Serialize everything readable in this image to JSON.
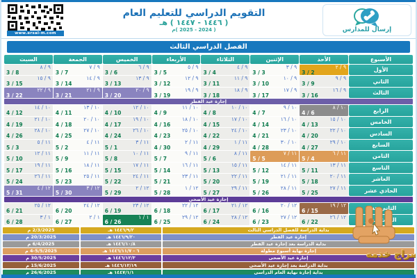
{
  "colors": {
    "blue": "#1878be",
    "teal": "#27a49d",
    "hijri_text": "#4a73c8",
    "greg_text": "#0e7b4e",
    "start": "#e2a51c",
    "lavender": "#8a84bf",
    "gray": "#8c8c8c",
    "orange": "#dd9c58",
    "brown": "#9a6a47",
    "green": "#168255",
    "band_fitr": "#6c5ea8",
    "band_adha": "#5d3d98"
  },
  "header": {
    "title": "التقويم الدراسي للتعليم العام",
    "hijri_years": "( ١٤٤٦ - ١٤٤٧ ) هـ",
    "gregorian_years": "( 2024 - 2025 )م",
    "logo_text": "إرسال للمدارس",
    "qr_label": "www.ersal-m.com"
  },
  "semester_banner": "الفصل الدراسي الثالث",
  "calendar": {
    "week_header": "الأسبوع",
    "day_headers": [
      "الأحد",
      "الإثنين",
      "الثلاثاء",
      "الأربعاء",
      "الخميس",
      "الجمعة",
      "السبت"
    ],
    "bands": {
      "fitr": "إجازة عيد الفطر",
      "adha": "إجازة عيد الأضحى"
    },
    "rows": [
      {
        "label": "الأول",
        "cells": [
          [
            "٩ / ٢",
            "3 / 2",
            "start"
          ],
          [
            "٩ / ٣",
            "3 / 3"
          ],
          [
            "٩ / ٤",
            "3 / 4"
          ],
          [
            "٩ / ٥",
            "3 / 5"
          ],
          [
            "٩ / ٦",
            "3 / 6"
          ],
          [
            "٩ / ٧",
            "3 / 7"
          ],
          [
            "٩ / ٨",
            "3 / 8"
          ]
        ]
      },
      {
        "label": "الثاني",
        "cells": [
          [
            "٩ / ٩",
            "3 / 9"
          ],
          [
            "٩ / ١٠",
            "3 / 10"
          ],
          [
            "٩ / ١١",
            "3 / 11"
          ],
          [
            "٩ / ١٢",
            "3 / 12"
          ],
          [
            "٩ / ١٣",
            "3 / 13"
          ],
          [
            "٩ / ١٤",
            "3 / 14"
          ],
          [
            "٩ / ١٥",
            "3 / 15"
          ]
        ]
      },
      {
        "label": "الثالث",
        "cells": [
          [
            "٩ / ١٦",
            "3 / 16"
          ],
          [
            "٩ / ١٧",
            "3 / 17"
          ],
          [
            "٩ / ١٨",
            "3 / 18"
          ],
          [
            "٩ / ١٩",
            "3 / 19"
          ],
          [
            "٩ / ٢٠",
            "3 / 20",
            "fitr"
          ],
          [
            "٩ / ٢١",
            "3 / 21",
            "fitr"
          ],
          [
            "٩ / ٢٢",
            "3 / 22",
            "fitr"
          ]
        ]
      },
      {
        "band": "fitr"
      },
      {
        "label": "الرابع",
        "cells": [
          [
            "١٠ / ٨",
            "4 / 6",
            "resume"
          ],
          [
            "١٠ / ٩",
            "4 / 7"
          ],
          [
            "١٠ / ١٠",
            "4 / 8"
          ],
          [
            "١٠ / ١١",
            "4 / 9"
          ],
          [
            "١٠ / ١٢",
            "4 / 10"
          ],
          [
            "١٠ / ١٣",
            "4 / 11"
          ],
          [
            "١٠ / ١٤",
            "4 / 12"
          ]
        ]
      },
      {
        "label": "الخامس",
        "cells": [
          [
            "١٠ / ١٥",
            "4 / 13"
          ],
          [
            "١٠ / ١٦",
            "4 / 14"
          ],
          [
            "١٠ / ١٧",
            "4 / 15"
          ],
          [
            "١٠ / ١٨",
            "4 / 16"
          ],
          [
            "١٠ / ١٩",
            "4 / 17"
          ],
          [
            "١٠ / ٢٠",
            "4 / 18"
          ],
          [
            "١٠ / ٢١",
            "4 / 19"
          ]
        ]
      },
      {
        "label": "السادس",
        "cells": [
          [
            "١٠ / ٢٢",
            "4 / 20"
          ],
          [
            "١٠ / ٢٣",
            "4 / 21"
          ],
          [
            "١٠ / ٢٤",
            "4 / 22"
          ],
          [
            "١٠ / ٢٥",
            "4 / 23"
          ],
          [
            "١٠ / ٢٦",
            "4 / 24"
          ],
          [
            "١٠ / ٢٧",
            "4 / 25"
          ],
          [
            "١٠ / ٢٨",
            "4 / 26"
          ]
        ]
      },
      {
        "label": "السابع",
        "cells": [
          [
            "١٠ / ٢٩",
            "4 / 27"
          ],
          [
            "١٠ / ٣٠",
            "4 / 28"
          ],
          [
            "١١ / ١",
            "4 / 29"
          ],
          [
            "١١ / ٢",
            "4 / 30"
          ],
          [
            "١١ / ٣",
            "5 / 1"
          ],
          [
            "١١ / ٤",
            "5 / 2"
          ],
          [
            "١١ / ٥",
            "5 / 3"
          ]
        ]
      },
      {
        "label": "الثامن",
        "cells": [
          [
            "١١ / ٦",
            "5 / 4",
            "long"
          ],
          [
            "١١ / ٧",
            "5 / 5",
            "long"
          ],
          [
            "١١ / ٨",
            "5 / 6"
          ],
          [
            "١١ / ٩",
            "5 / 7"
          ],
          [
            "١١ / ١٠",
            "5 / 8"
          ],
          [
            "١١ / ١١",
            "5 / 9"
          ],
          [
            "١١ / ١٢",
            "5 / 10"
          ]
        ]
      },
      {
        "label": "التاسع",
        "cells": [
          [
            "١١ / ١٣",
            "5 / 11"
          ],
          [
            "١١ / ١٤",
            "5 / 12"
          ],
          [
            "١١ / ١٥",
            "5 / 13"
          ],
          [
            "١١ / ١٦",
            "5 / 14"
          ],
          [
            "١١ / ١٧",
            "5 / 15"
          ],
          [
            "١١ / ١٨",
            "5 / 16"
          ],
          [
            "١١ / ١٩",
            "5 / 17"
          ]
        ]
      },
      {
        "label": "العاشر",
        "cells": [
          [
            "١١ / ٢٠",
            "5 / 18"
          ],
          [
            "١١ / ٢١",
            "5 / 19"
          ],
          [
            "١١ / ٢٢",
            "5 / 20"
          ],
          [
            "١١ / ٢٣",
            "5 / 21"
          ],
          [
            "١١ / ٢٤",
            "5 / 22"
          ],
          [
            "١١ / ٢٥",
            "5 / 23"
          ],
          [
            "١١ / ٢٦",
            "5 / 24"
          ]
        ]
      },
      {
        "label": "الحادي عشر",
        "cells": [
          [
            "١١ / ٢٧",
            "5 / 25"
          ],
          [
            "١١ / ٢٨",
            "5 / 26"
          ],
          [
            "١١ / ٢٩",
            "5 / 27"
          ],
          [
            "١٢ / ١",
            "5 / 28"
          ],
          [
            "١٢ / ٢",
            "5 / 29"
          ],
          [
            "١٢ / ٣",
            "5 / 30",
            "adha"
          ],
          [
            "١٢ / ٤",
            "5 / 31",
            "adha"
          ]
        ]
      },
      {
        "band": "adha"
      },
      {
        "label": "الثاني عشر",
        "cells": [
          [
            "١٢ / ١٩",
            "6 / 15",
            "resume2"
          ],
          [
            "١٢ / ٢٠",
            "6 / 16"
          ],
          [
            "١٢ / ٢١",
            "6 / 17"
          ],
          [
            "١٢ / ٢٢",
            "6 / 18"
          ],
          [
            "١٢ / ٢٣",
            "6 / 19"
          ],
          [
            "١٢ / ٢٤",
            "6 / 20"
          ],
          [
            "١٢ / ٢٥",
            "6 / 21"
          ]
        ]
      },
      {
        "label": "الثالث عشر",
        "cells": [
          [
            "١٢ / ٢٦",
            "6 / 22"
          ],
          [
            "١٢ / ٢٧",
            "6 / 23"
          ],
          [
            "١٢ / ٢٨",
            "6 / 24"
          ],
          [
            "١٢ / ٢٩",
            "6 / 25"
          ],
          [
            "١ / ١",
            "6 / 26",
            "yearend"
          ],
          [
            "١ / ٢",
            "6 / 27"
          ],
          [
            "١ / ٣",
            "6 / 28"
          ]
        ]
      }
    ]
  },
  "summary": {
    "rows": [
      {
        "label": "بداية الدراسة للفصل الدراسي الثالث",
        "hijri": "١٤٤٦/٩/٢ هـ",
        "greg": "2/3/2025 م",
        "color": "#d5a91f"
      },
      {
        "label": "إجازة عيد الفطر",
        "hijri": "١٤٤٦/٩/٢٠ هـ",
        "greg": "20/3/2025 م",
        "color": "#7e90c8"
      },
      {
        "label": "بداية الدراسة بعد إجازة عيد الفطر",
        "hijri": "١٤٤٦/١٠/٨ هـ",
        "greg": "6/4/2025 م",
        "color": "#9a9a9a"
      },
      {
        "label": "إجازة نهاية أسبوع مطولة",
        "hijri": "٦ - ١٤٤٦/١١/٧ هـ",
        "greg": "4-5/5/2025 م",
        "color": "#dc9e60"
      },
      {
        "label": "إجازة عيد الأضحى",
        "hijri": "١٤٤٦/١٢/٣ هـ",
        "greg": "30/5/2025 م",
        "color": "#6b3e9e"
      },
      {
        "label": "بداية الدراسة بعد إجازة عيد الأضحى",
        "hijri": "١٤٤٦/١٢/١٩ هـ",
        "greg": "15/6/2025 م",
        "color": "#96603b"
      },
      {
        "label": "بداية إجازة نهاية العام الدراسي",
        "hijri": "١٤٤٧/١/١ هـ",
        "greg": "26/6/2025 م",
        "color": "#1f8b5f"
      }
    ]
  },
  "watermark_text": "صراج خدمه"
}
